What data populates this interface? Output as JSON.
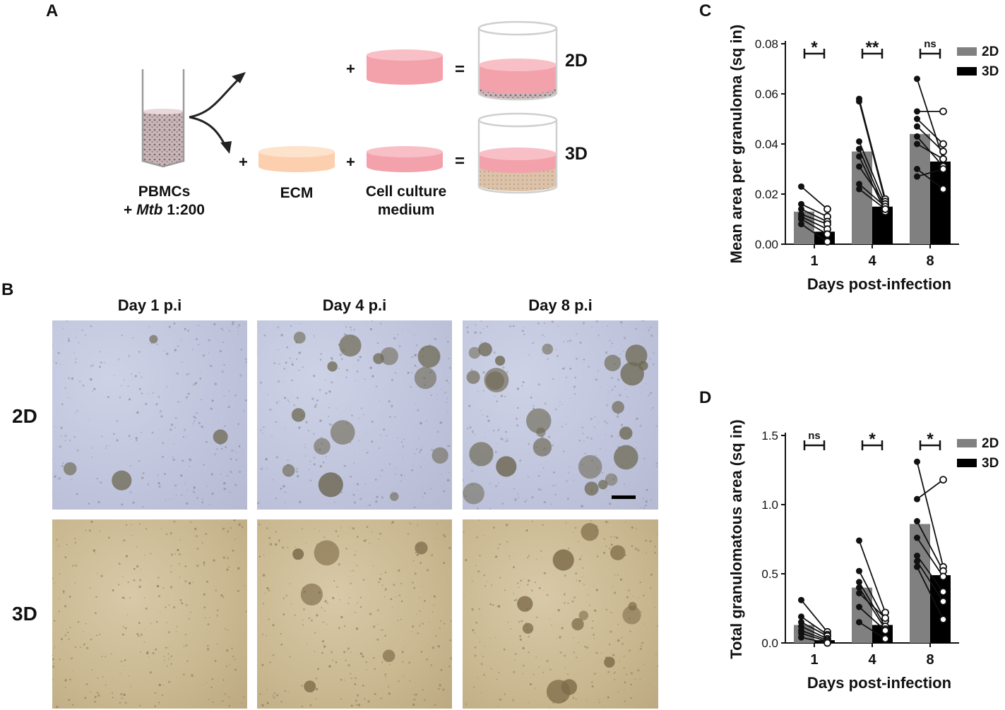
{
  "panel_a": {
    "letter": "A",
    "tube_label_line1": "PBMCs",
    "tube_label_prefix": "+ ",
    "tube_label_italic": "Mtb",
    "tube_label_suffix": " 1:200",
    "plus": "+",
    "equals": "=",
    "ecm_label": "ECM",
    "medium_label_line1": "Cell culture",
    "medium_label_line2": "medium",
    "label_2d": "2D",
    "label_3d": "3D",
    "colors": {
      "medium": "#f3a1aa",
      "ecm": "#fccfae",
      "cells": "#b9a3a6"
    }
  },
  "panel_b": {
    "letter": "B",
    "columns": [
      "Day 1 p.i",
      "Day 4 p.i",
      "Day 8 p.i"
    ],
    "rows": [
      "2D",
      "3D"
    ]
  },
  "chart_data": [
    {
      "panel": "C",
      "type": "bar",
      "categories": [
        "1",
        "4",
        "8"
      ],
      "xlabel": "Days post-infection",
      "ylabel": "Mean area per granuloma (sq in)",
      "ylim": [
        0,
        0.08
      ],
      "yticks": [
        "0.00",
        "0.02",
        "0.04",
        "0.06",
        "0.08"
      ],
      "ytick_values": [
        0,
        0.02,
        0.04,
        0.06,
        0.08
      ],
      "legend_placement": "top-right",
      "series": [
        {
          "name": "2D",
          "color": "#808080",
          "values": [
            0.013,
            0.037,
            0.044
          ]
        },
        {
          "name": "3D",
          "color": "#000000",
          "values": [
            0.005,
            0.015,
            0.033
          ]
        }
      ],
      "paired_points": [
        [
          [
            0.023,
            0.014
          ],
          [
            0.016,
            0.011
          ],
          [
            0.014,
            0.009
          ],
          [
            0.012,
            0.008
          ],
          [
            0.011,
            0.006
          ],
          [
            0.01,
            0.004
          ],
          [
            0.008,
            0.001
          ]
        ],
        [
          [
            0.058,
            0.018
          ],
          [
            0.057,
            0.017
          ],
          [
            0.041,
            0.016
          ],
          [
            0.038,
            0.014
          ],
          [
            0.035,
            0.013
          ],
          [
            0.031,
            0.016
          ],
          [
            0.024,
            0.015
          ],
          [
            0.022,
            0.014
          ]
        ],
        [
          [
            0.066,
            0.034
          ],
          [
            0.053,
            0.053
          ],
          [
            0.05,
            0.04
          ],
          [
            0.047,
            0.037
          ],
          [
            0.043,
            0.031
          ],
          [
            0.04,
            0.034
          ],
          [
            0.03,
            0.022
          ],
          [
            0.027,
            0.03
          ]
        ]
      ],
      "significance": [
        "*",
        "**",
        "ns"
      ]
    },
    {
      "panel": "D",
      "type": "bar",
      "categories": [
        "1",
        "4",
        "8"
      ],
      "xlabel": "Days post-infection",
      "ylabel": "Total granulomatous area (sq in)",
      "ylim": [
        0,
        1.5
      ],
      "yticks": [
        "0.0",
        "0.5",
        "1.0",
        "1.5"
      ],
      "ytick_values": [
        0,
        0.5,
        1.0,
        1.5
      ],
      "legend_placement": "top-right",
      "series": [
        {
          "name": "2D",
          "color": "#808080",
          "values": [
            0.13,
            0.4,
            0.86
          ]
        },
        {
          "name": "3D",
          "color": "#000000",
          "values": [
            0.02,
            0.13,
            0.49
          ]
        }
      ],
      "paired_points": [
        [
          [
            0.31,
            0.08
          ],
          [
            0.19,
            0.06
          ],
          [
            0.15,
            0.05
          ],
          [
            0.12,
            0.03
          ],
          [
            0.09,
            0.02
          ],
          [
            0.07,
            0.01
          ],
          [
            0.04,
            0.0
          ]
        ],
        [
          [
            0.74,
            0.22
          ],
          [
            0.52,
            0.16
          ],
          [
            0.44,
            0.12
          ],
          [
            0.4,
            0.1
          ],
          [
            0.36,
            0.18
          ],
          [
            0.26,
            0.09
          ],
          [
            0.15,
            0.03
          ]
        ],
        [
          [
            1.31,
            0.55
          ],
          [
            1.04,
            1.18
          ],
          [
            0.88,
            0.52
          ],
          [
            0.76,
            0.48
          ],
          [
            0.63,
            0.37
          ],
          [
            0.59,
            0.3
          ],
          [
            0.55,
            0.17
          ]
        ]
      ],
      "significance": [
        "ns",
        "*",
        "*"
      ]
    }
  ]
}
